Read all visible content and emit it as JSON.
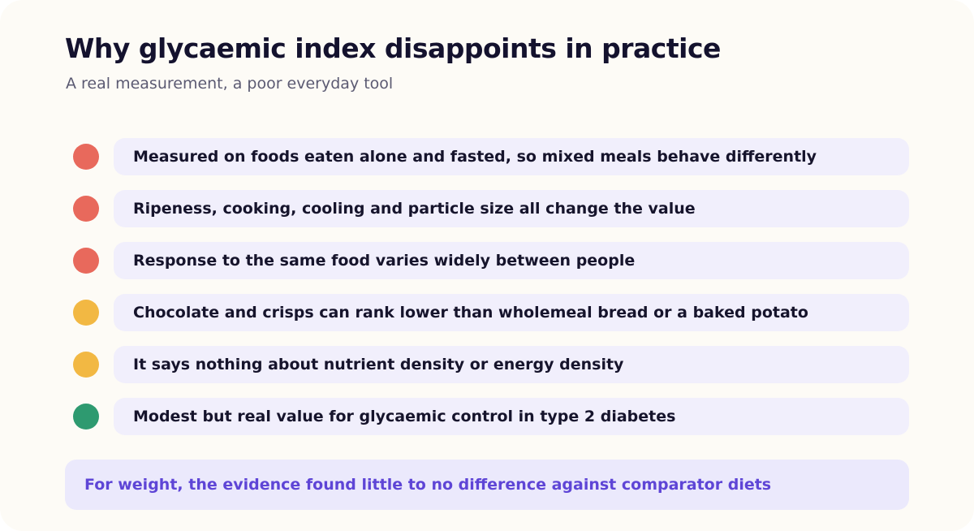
{
  "header": {
    "title": "Why glycaemic index disappoints in practice",
    "subtitle": "A real measurement, a poor everyday tool"
  },
  "status_colors": {
    "red": "#e8695c",
    "amber": "#f2b843",
    "green": "#2e9a70"
  },
  "items": [
    {
      "text": "Measured on foods eaten alone and fasted, so mixed meals behave differently",
      "status": "red"
    },
    {
      "text": "Ripeness, cooking, cooling and particle size all change the value",
      "status": "red"
    },
    {
      "text": "Response to the same food varies widely between people",
      "status": "red"
    },
    {
      "text": "Chocolate and crisps can rank lower than wholemeal bread or a baked potato",
      "status": "amber"
    },
    {
      "text": "It says nothing about nutrient density or energy density",
      "status": "amber"
    },
    {
      "text": "Modest but real value for glycaemic control in type 2 diabetes",
      "status": "green"
    }
  ],
  "callout": {
    "text": "For weight, the evidence found little to no difference against comparator diets"
  }
}
